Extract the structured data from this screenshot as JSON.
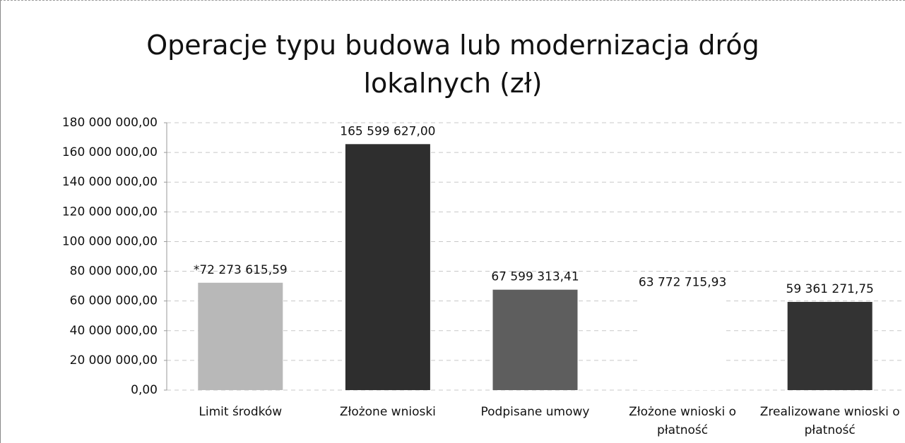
{
  "chart_data": {
    "type": "bar",
    "title": "Operacje typu budowa lub modernizacja dróg lokalnych (zł)",
    "categories": [
      "Limit środków",
      "Złożone wnioski",
      "Podpisane umowy",
      "Złożone wnioski o płatność",
      "Zrealizowane wnioski o płatność"
    ],
    "values": [
      72273615.59,
      165599627.0,
      67599313.41,
      63772715.93,
      59361271.75
    ],
    "value_labels": [
      "*72 273 615,59",
      "165 599 627,00",
      "67 599 313,41",
      "63 772 715,93",
      "59 361 271,75"
    ],
    "colors": [
      "#b8b8b8",
      "#2e2e2e",
      "#5e5e5e",
      "#ffffff",
      "#333333"
    ],
    "ylim": [
      0,
      180000000
    ],
    "yticks": [
      {
        "value": 0,
        "label": "0,00"
      },
      {
        "value": 20000000,
        "label": "20 000 000,00"
      },
      {
        "value": 40000000,
        "label": "40 000 000,00"
      },
      {
        "value": 60000000,
        "label": "60 000 000,00"
      },
      {
        "value": 80000000,
        "label": "80 000 000,00"
      },
      {
        "value": 100000000,
        "label": "100 000 000,00"
      },
      {
        "value": 120000000,
        "label": "120 000 000,00"
      },
      {
        "value": 140000000,
        "label": "140 000 000,00"
      },
      {
        "value": 160000000,
        "label": "160 000 000,00"
      },
      {
        "value": 180000000,
        "label": "180 000 000,00"
      }
    ],
    "grid": true
  }
}
